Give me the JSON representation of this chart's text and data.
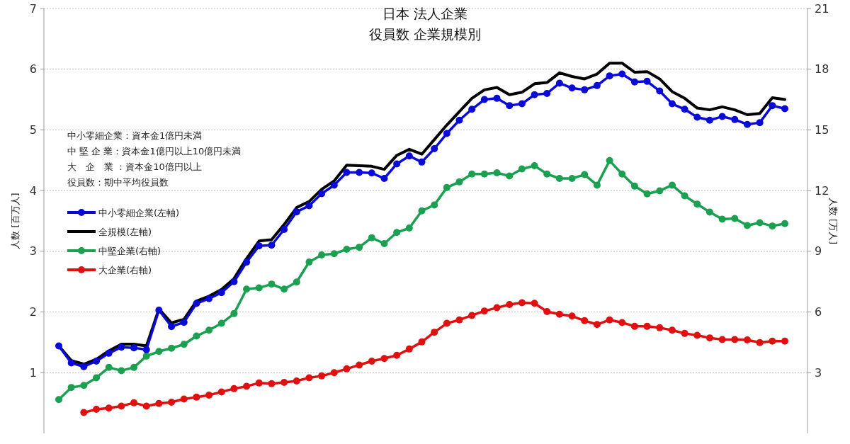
{
  "chart_data": {
    "type": "line",
    "title": "日本 法人企業",
    "subtitle": "役員数 企業規模別",
    "ylabel": "人数 [百万人]",
    "y2label": "人数 [万人]",
    "annotations": [
      "中小零細企業：資本金1億円未満",
      "中 堅 企 業：資本金1億円以上10億円未満",
      "大　企　業 ：資本金10億円以上",
      "役員数：期中平均役員数"
    ],
    "categories": [
      null,
      null,
      null,
      null,
      null,
      null,
      null,
      null,
      null,
      null,
      null,
      null,
      null,
      null,
      null,
      null,
      null,
      null,
      null,
      null,
      null,
      null,
      null,
      null,
      null,
      null,
      null,
      null,
      null,
      null,
      null,
      null,
      null,
      null,
      null,
      null,
      null,
      null,
      null,
      null,
      null,
      null,
      null,
      null,
      null,
      null,
      null,
      null,
      null,
      null,
      null,
      null,
      null,
      null,
      null,
      null,
      null,
      null,
      null
    ],
    "ylim": [
      0,
      7
    ],
    "yticks": [
      1,
      2,
      3,
      4,
      5,
      6,
      7
    ],
    "y2lim": [
      0,
      21
    ],
    "y2ticks": [
      3,
      6,
      9,
      12,
      15,
      18,
      21
    ],
    "grid": "y",
    "legend": "left",
    "series": [
      {
        "name": "中小零細企業(左軸)",
        "color": "#0a0ad8",
        "marker": "circle",
        "values": [
          1.44,
          1.16,
          1.1,
          1.19,
          1.32,
          1.42,
          1.41,
          1.38,
          2.03,
          1.76,
          1.83,
          2.14,
          2.22,
          2.32,
          2.5,
          2.82,
          3.09,
          3.1,
          3.36,
          3.65,
          3.75,
          3.95,
          4.09,
          4.3,
          4.3,
          4.29,
          4.2,
          4.44,
          4.57,
          4.47,
          4.69,
          4.94,
          5.16,
          5.34,
          5.5,
          5.52,
          5.4,
          5.43,
          5.58,
          5.6,
          5.77,
          5.69,
          5.66,
          5.73,
          5.89,
          5.92,
          5.79,
          5.8,
          5.64,
          5.43,
          5.34,
          5.21,
          5.16,
          5.22,
          5.17,
          5.09,
          5.12,
          5.4,
          5.35
        ]
      },
      {
        "name": "全規模(左軸)",
        "color": "#000000",
        "marker": "none",
        "values": [
          1.44,
          1.2,
          1.14,
          1.22,
          1.36,
          1.47,
          1.47,
          1.44,
          2.05,
          1.82,
          1.88,
          2.18,
          2.26,
          2.37,
          2.55,
          2.88,
          3.17,
          3.19,
          3.44,
          3.72,
          3.82,
          4.02,
          4.16,
          4.42,
          4.41,
          4.4,
          4.35,
          4.58,
          4.68,
          4.6,
          4.84,
          5.08,
          5.3,
          5.52,
          5.66,
          5.7,
          5.58,
          5.62,
          5.76,
          5.78,
          5.94,
          5.88,
          5.84,
          5.92,
          6.1,
          6.1,
          5.95,
          5.96,
          5.84,
          5.63,
          5.52,
          5.36,
          5.33,
          5.38,
          5.33,
          5.25,
          5.27,
          5.53,
          5.5
        ]
      },
      {
        "name": "中堅企業(右軸)",
        "color": "#1aa050",
        "marker": "circle",
        "axis": "y2",
        "values": [
          1.67,
          2.27,
          2.37,
          2.75,
          3.26,
          3.1,
          3.26,
          3.82,
          4.05,
          4.21,
          4.4,
          4.81,
          5.1,
          5.44,
          5.92,
          7.13,
          7.19,
          7.38,
          7.13,
          7.48,
          8.47,
          8.82,
          8.88,
          9.1,
          9.2,
          9.67,
          9.38,
          9.93,
          10.15,
          11.0,
          11.29,
          12.15,
          12.43,
          12.82,
          12.82,
          12.88,
          12.72,
          13.07,
          13.23,
          12.82,
          12.6,
          12.6,
          12.79,
          12.27,
          13.48,
          12.82,
          12.22,
          11.84,
          11.99,
          12.27,
          11.74,
          11.33,
          10.94,
          10.59,
          10.62,
          10.27,
          10.41,
          10.25,
          10.37
        ]
      },
      {
        "name": "大企業(右軸)",
        "color": "#e01010",
        "marker": "circle",
        "axis": "y2",
        "values": [
          null,
          null,
          1.03,
          1.19,
          1.25,
          1.35,
          1.51,
          1.35,
          1.48,
          1.54,
          1.7,
          1.79,
          1.89,
          2.05,
          2.21,
          2.33,
          2.49,
          2.46,
          2.52,
          2.59,
          2.75,
          2.84,
          3.0,
          3.19,
          3.38,
          3.57,
          3.7,
          3.86,
          4.17,
          4.52,
          5.0,
          5.44,
          5.61,
          5.83,
          6.05,
          6.21,
          6.37,
          6.46,
          6.43,
          6.02,
          5.89,
          5.8,
          5.57,
          5.38,
          5.61,
          5.48,
          5.29,
          5.29,
          5.22,
          5.1,
          4.94,
          4.85,
          4.72,
          4.64,
          4.64,
          4.62,
          4.49,
          4.56,
          4.56
        ]
      }
    ]
  }
}
